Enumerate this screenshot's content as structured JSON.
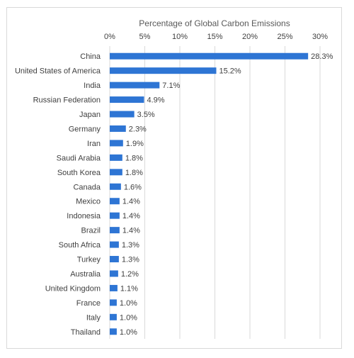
{
  "chart_data": {
    "type": "bar",
    "orientation": "horizontal",
    "title": "Percentage of Global Carbon Emissions",
    "xlabel": "",
    "ylabel": "",
    "xlim": [
      0,
      30
    ],
    "axis_position": "top",
    "grid": true,
    "bar_color": "#2e75d4",
    "tick_labels": [
      "0%",
      "5%",
      "10%",
      "15%",
      "20%",
      "25%",
      "30%"
    ],
    "tick_values": [
      0,
      5,
      10,
      15,
      20,
      25,
      30
    ],
    "categories": [
      "China",
      "United States of America",
      "India",
      "Russian Federation",
      "Japan",
      "Germany",
      "Iran",
      "Saudi Arabia",
      "South Korea",
      "Canada",
      "Mexico",
      "Indonesia",
      "Brazil",
      "South Africa",
      "Turkey",
      "Australia",
      "United Kingdom",
      "France",
      "Italy",
      "Thailand"
    ],
    "values": [
      28.3,
      15.2,
      7.1,
      4.9,
      3.5,
      2.3,
      1.9,
      1.8,
      1.8,
      1.6,
      1.4,
      1.4,
      1.4,
      1.3,
      1.3,
      1.2,
      1.1,
      1.0,
      1.0,
      1.0
    ],
    "value_labels": [
      "28.3%",
      "15.2%",
      "7.1%",
      "4.9%",
      "3.5%",
      "2.3%",
      "1.9%",
      "1.8%",
      "1.8%",
      "1.6%",
      "1.4%",
      "1.4%",
      "1.4%",
      "1.3%",
      "1.3%",
      "1.2%",
      "1.1%",
      "1.0%",
      "1.0%",
      "1.0%"
    ]
  }
}
